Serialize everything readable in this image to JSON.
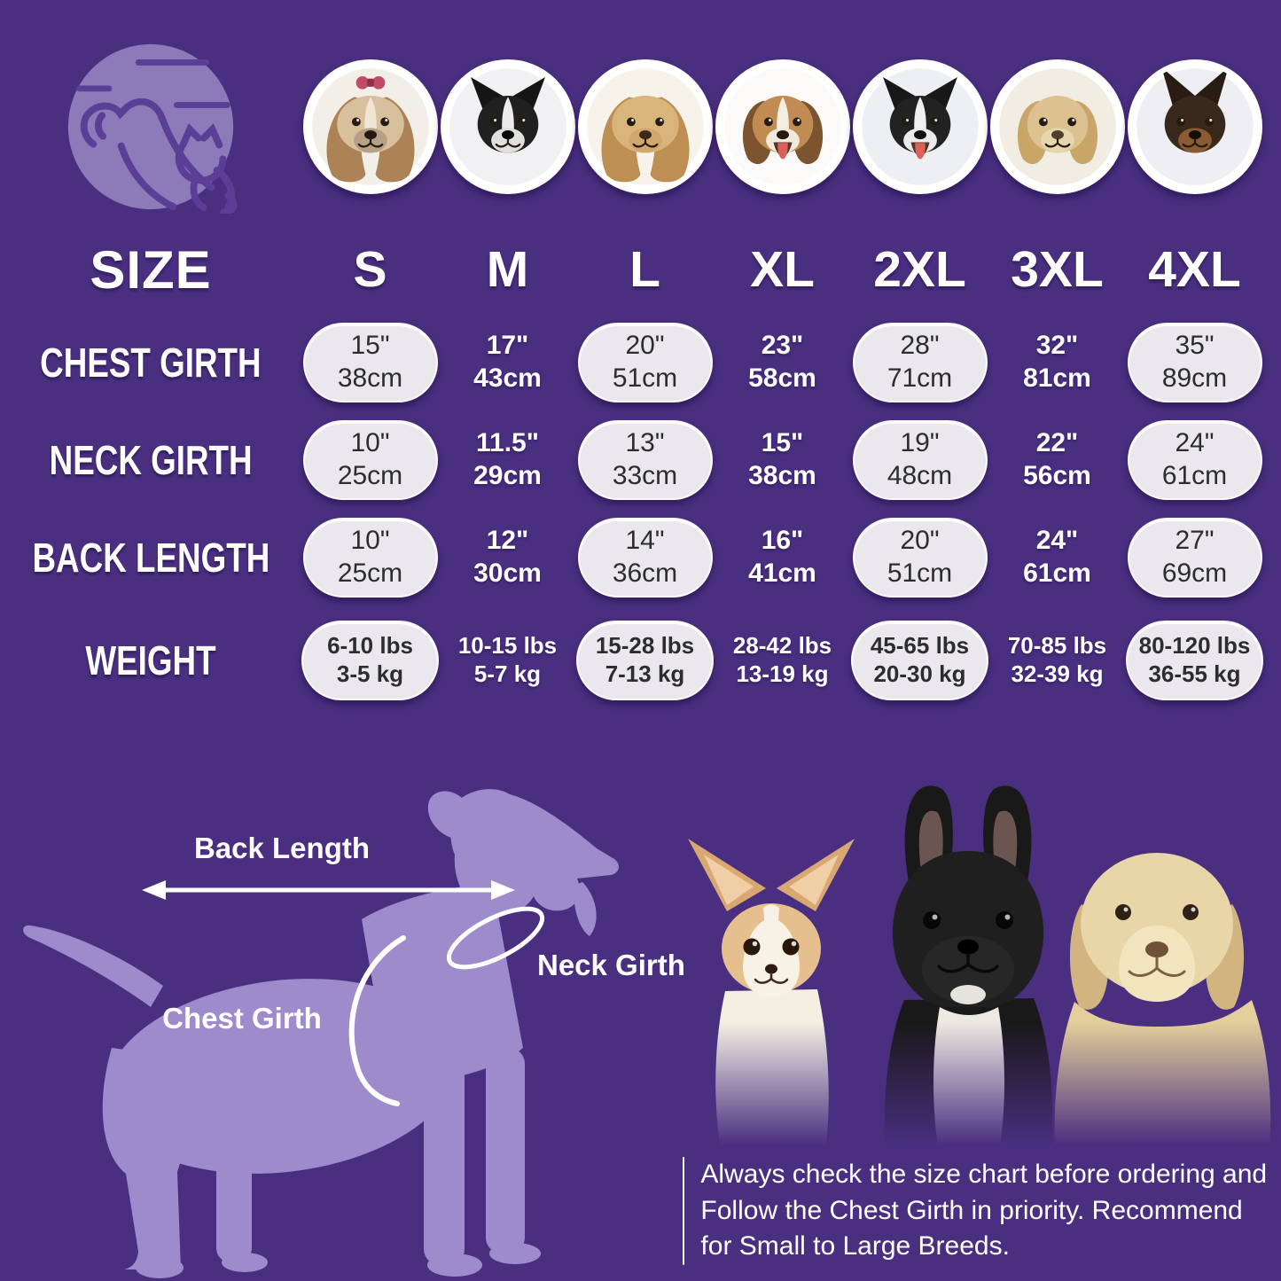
{
  "colors": {
    "background": "#4A2F80",
    "pill_background": "#EAE8EC",
    "pill_text": "#2D2D2D",
    "light_purple_silhouette": "#9D8BCB",
    "logo_circle": "#8D7BB9",
    "logo_line_art": "#5B3E96",
    "text_white": "#FFFFFF"
  },
  "header": {
    "logo_name": "dog-and-cat-logo",
    "breeds": [
      {
        "name": "Shih Tzu",
        "slug": "shih-tzu",
        "photo_bg": "#F2EEE8",
        "ear_type": "long",
        "ear": "#AC8257",
        "head": "#D8C09C",
        "wide": true,
        "blaze": "#EFE6D6",
        "muzzle": "#B99F85",
        "nose": "#241B15",
        "tongue": false,
        "bow": true
      },
      {
        "name": "Boston Terrier",
        "slug": "boston-terrier",
        "photo_bg": "#F1F1F4",
        "ear_type": "pointy",
        "ear": "#151515",
        "head": "#202020",
        "wide": false,
        "blaze": "#ECECEC",
        "muzzle": "#E2E0DD",
        "nose": "#0C0C0C",
        "tongue": false,
        "bow": false
      },
      {
        "name": "Cocker Spaniel",
        "slug": "cocker-spaniel",
        "photo_bg": "#F7F3EB",
        "ear_type": "long",
        "ear": "#BE8F52",
        "head": "#D9B47B",
        "wide": true,
        "blaze": null,
        "muzzle": "#D2A96C",
        "nose": "#3A2A1C",
        "tongue": false,
        "bow": false
      },
      {
        "name": "Beagle",
        "slug": "beagle",
        "photo_bg": "#FBFAF8",
        "ear_type": "floppy",
        "ear": "#7D5430",
        "head": "#C08C51",
        "wide": false,
        "blaze": "#F5EEE3",
        "muzzle": "#F1E9DC",
        "nose": "#26190F",
        "tongue": true,
        "bow": false
      },
      {
        "name": "Border Collie",
        "slug": "border-collie",
        "photo_bg": "#EDEFF2",
        "ear_type": "pointy",
        "ear": "#181818",
        "head": "#222222",
        "wide": false,
        "blaze": "#F0F0F0",
        "muzzle": "#EBEBEB",
        "nose": "#111111",
        "tongue": true,
        "bow": false
      },
      {
        "name": "Labrador Retriever",
        "slug": "labrador",
        "photo_bg": "#F2EDE3",
        "ear_type": "floppy",
        "ear": "#C7A668",
        "head": "#DCC291",
        "wide": false,
        "blaze": null,
        "muzzle": "#E7D5AB",
        "nose": "#52402F",
        "tongue": false,
        "bow": false
      },
      {
        "name": "Doberman",
        "slug": "doberman",
        "photo_bg": "#EFEFF3",
        "ear_type": "tallpointy",
        "ear": "#281C13",
        "head": "#39281C",
        "wide": false,
        "blaze": null,
        "muzzle": "#8C5B33",
        "nose": "#140D08",
        "tongue": false,
        "bow": false
      }
    ]
  },
  "table": {
    "size_label": "SIZE",
    "sizes": [
      "S",
      "M",
      "L",
      "XL",
      "2XL",
      "3XL",
      "4XL"
    ],
    "rows": [
      {
        "label": "CHEST GIRTH",
        "values": [
          {
            "line1": "15\"",
            "line2": "38cm"
          },
          {
            "line1": "17\"",
            "line2": "43cm"
          },
          {
            "line1": "20\"",
            "line2": "51cm"
          },
          {
            "line1": "23\"",
            "line2": "58cm"
          },
          {
            "line1": "28\"",
            "line2": "71cm"
          },
          {
            "line1": "32\"",
            "line2": "81cm"
          },
          {
            "line1": "35\"",
            "line2": "89cm"
          }
        ]
      },
      {
        "label": "NECK GIRTH",
        "values": [
          {
            "line1": "10\"",
            "line2": "25cm"
          },
          {
            "line1": "11.5\"",
            "line2": "29cm"
          },
          {
            "line1": "13\"",
            "line2": "33cm"
          },
          {
            "line1": "15\"",
            "line2": "38cm"
          },
          {
            "line1": "19\"",
            "line2": "48cm"
          },
          {
            "line1": "22\"",
            "line2": "56cm"
          },
          {
            "line1": "24\"",
            "line2": "61cm"
          }
        ]
      },
      {
        "label": "BACK LENGTH",
        "values": [
          {
            "line1": "10\"",
            "line2": "25cm"
          },
          {
            "line1": "12\"",
            "line2": "30cm"
          },
          {
            "line1": "14\"",
            "line2": "36cm"
          },
          {
            "line1": "16\"",
            "line2": "41cm"
          },
          {
            "line1": "20\"",
            "line2": "51cm"
          },
          {
            "line1": "24\"",
            "line2": "61cm"
          },
          {
            "line1": "27\"",
            "line2": "69cm"
          }
        ]
      },
      {
        "label": "WEIGHT",
        "values": [
          {
            "line1": "6-10 lbs",
            "line2": "3-5 kg"
          },
          {
            "line1": "10-15 lbs",
            "line2": "5-7 kg"
          },
          {
            "line1": "15-28 lbs",
            "line2": "7-13 kg"
          },
          {
            "line1": "28-42 lbs",
            "line2": "13-19 kg"
          },
          {
            "line1": "45-65 lbs",
            "line2": "20-30 kg"
          },
          {
            "line1": "70-85 lbs",
            "line2": "32-39 kg"
          },
          {
            "line1": "80-120 lbs",
            "line2": "36-55 kg"
          }
        ]
      }
    ]
  },
  "chart_data": {
    "type": "table",
    "title": "SIZE",
    "columns": [
      "SIZE",
      "S",
      "M",
      "L",
      "XL",
      "2XL",
      "3XL",
      "4XL"
    ],
    "rows": [
      {
        "label": "CHEST GIRTH",
        "values": [
          "15\" / 38cm",
          "17\" / 43cm",
          "20\" / 51cm",
          "23\" / 58cm",
          "28\" / 71cm",
          "32\" / 81cm",
          "35\" / 89cm"
        ]
      },
      {
        "label": "NECK GIRTH",
        "values": [
          "10\" / 25cm",
          "11.5\" / 29cm",
          "13\" / 33cm",
          "15\" / 38cm",
          "19\" / 48cm",
          "22\" / 56cm",
          "24\" / 61cm"
        ]
      },
      {
        "label": "BACK LENGTH",
        "values": [
          "10\" / 25cm",
          "12\" / 30cm",
          "14\" / 36cm",
          "16\" / 41cm",
          "20\" / 51cm",
          "24\" / 61cm",
          "27\" / 69cm"
        ]
      },
      {
        "label": "WEIGHT",
        "values": [
          "6-10 lbs / 3-5 kg",
          "10-15 lbs / 5-7 kg",
          "15-28 lbs / 7-13 kg",
          "28-42 lbs / 13-19 kg",
          "45-65 lbs / 20-30 kg",
          "70-85 lbs / 32-39 kg",
          "80-120 lbs / 36-55 kg"
        ]
      }
    ]
  },
  "diagram": {
    "back_length_label": "Back Length",
    "neck_girth_label": "Neck Girth",
    "chest_girth_label": "Chest Girth"
  },
  "hero_dogs": [
    "Chihuahua",
    "French Bulldog",
    "Labrador Retriever"
  ],
  "note": {
    "text": "Always check the size chart before ordering and Follow the Chest Girth in priority. Recommend for Small to Large Breeds."
  }
}
